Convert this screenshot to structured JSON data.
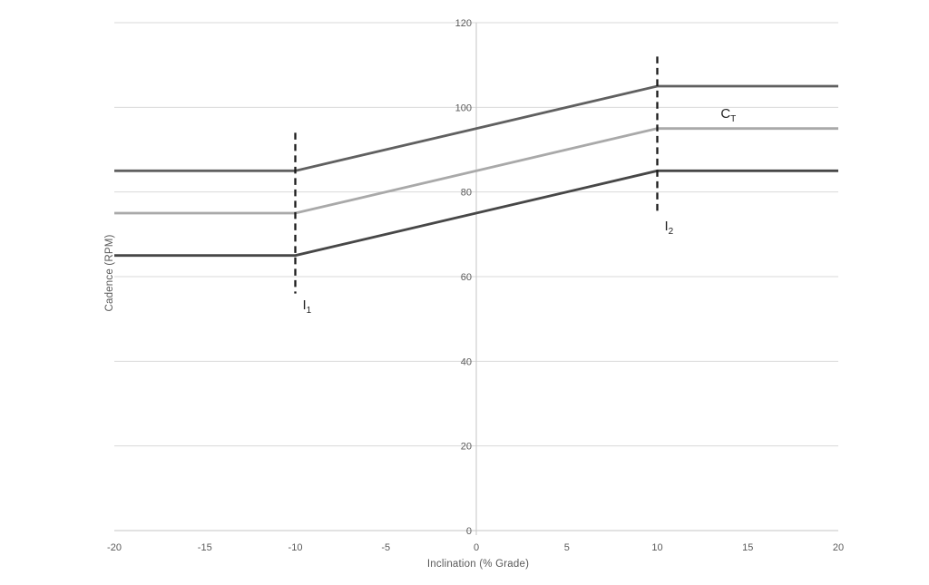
{
  "chart_data": {
    "type": "line",
    "title": "",
    "xlabel": "Inclination (% Grade)",
    "ylabel": "Cadence (RPM)",
    "xlim": [
      -20,
      20
    ],
    "ylim": [
      0,
      120
    ],
    "xticks": [
      -20,
      -15,
      -10,
      -5,
      0,
      5,
      10,
      15,
      20
    ],
    "yticks": [
      0,
      20,
      40,
      60,
      80,
      100,
      120
    ],
    "grid": "horizontal-only",
    "legend": "none",
    "series": [
      {
        "name": "upper-cadence-line",
        "color": "#606060",
        "width": 2.8,
        "x": [
          -20,
          -10,
          10,
          20
        ],
        "y": [
          85,
          85,
          105,
          105
        ]
      },
      {
        "name": "target-cadence-line-CT",
        "color": "#a9a9a9",
        "width": 2.8,
        "x": [
          -20,
          -10,
          10,
          20
        ],
        "y": [
          75,
          75,
          95,
          95
        ]
      },
      {
        "name": "lower-cadence-line",
        "color": "#474747",
        "width": 2.8,
        "x": [
          -20,
          -10,
          10,
          20
        ],
        "y": [
          65,
          65,
          85,
          85
        ]
      }
    ],
    "annotations": [
      {
        "kind": "vline",
        "name": "inclination-threshold-1",
        "x": -10,
        "y1": 56,
        "y2": 94,
        "text": "I",
        "sub": "1"
      },
      {
        "kind": "vline",
        "name": "inclination-threshold-2",
        "x": 10,
        "y1": 74.5,
        "y2": 112,
        "text": "I",
        "sub": "2"
      },
      {
        "kind": "label",
        "name": "target-cadence-label",
        "x": 13.5,
        "y": 100,
        "text": "C",
        "sub": "T"
      }
    ],
    "colors": {
      "gridline": "#d9d9d9",
      "axis_line": "#c6c6c6",
      "tick_label": "#595959",
      "axis_title": "#595959",
      "dashed_line": "#1a1a1a",
      "annotation_text": "#222222",
      "background": "#ffffff"
    }
  }
}
